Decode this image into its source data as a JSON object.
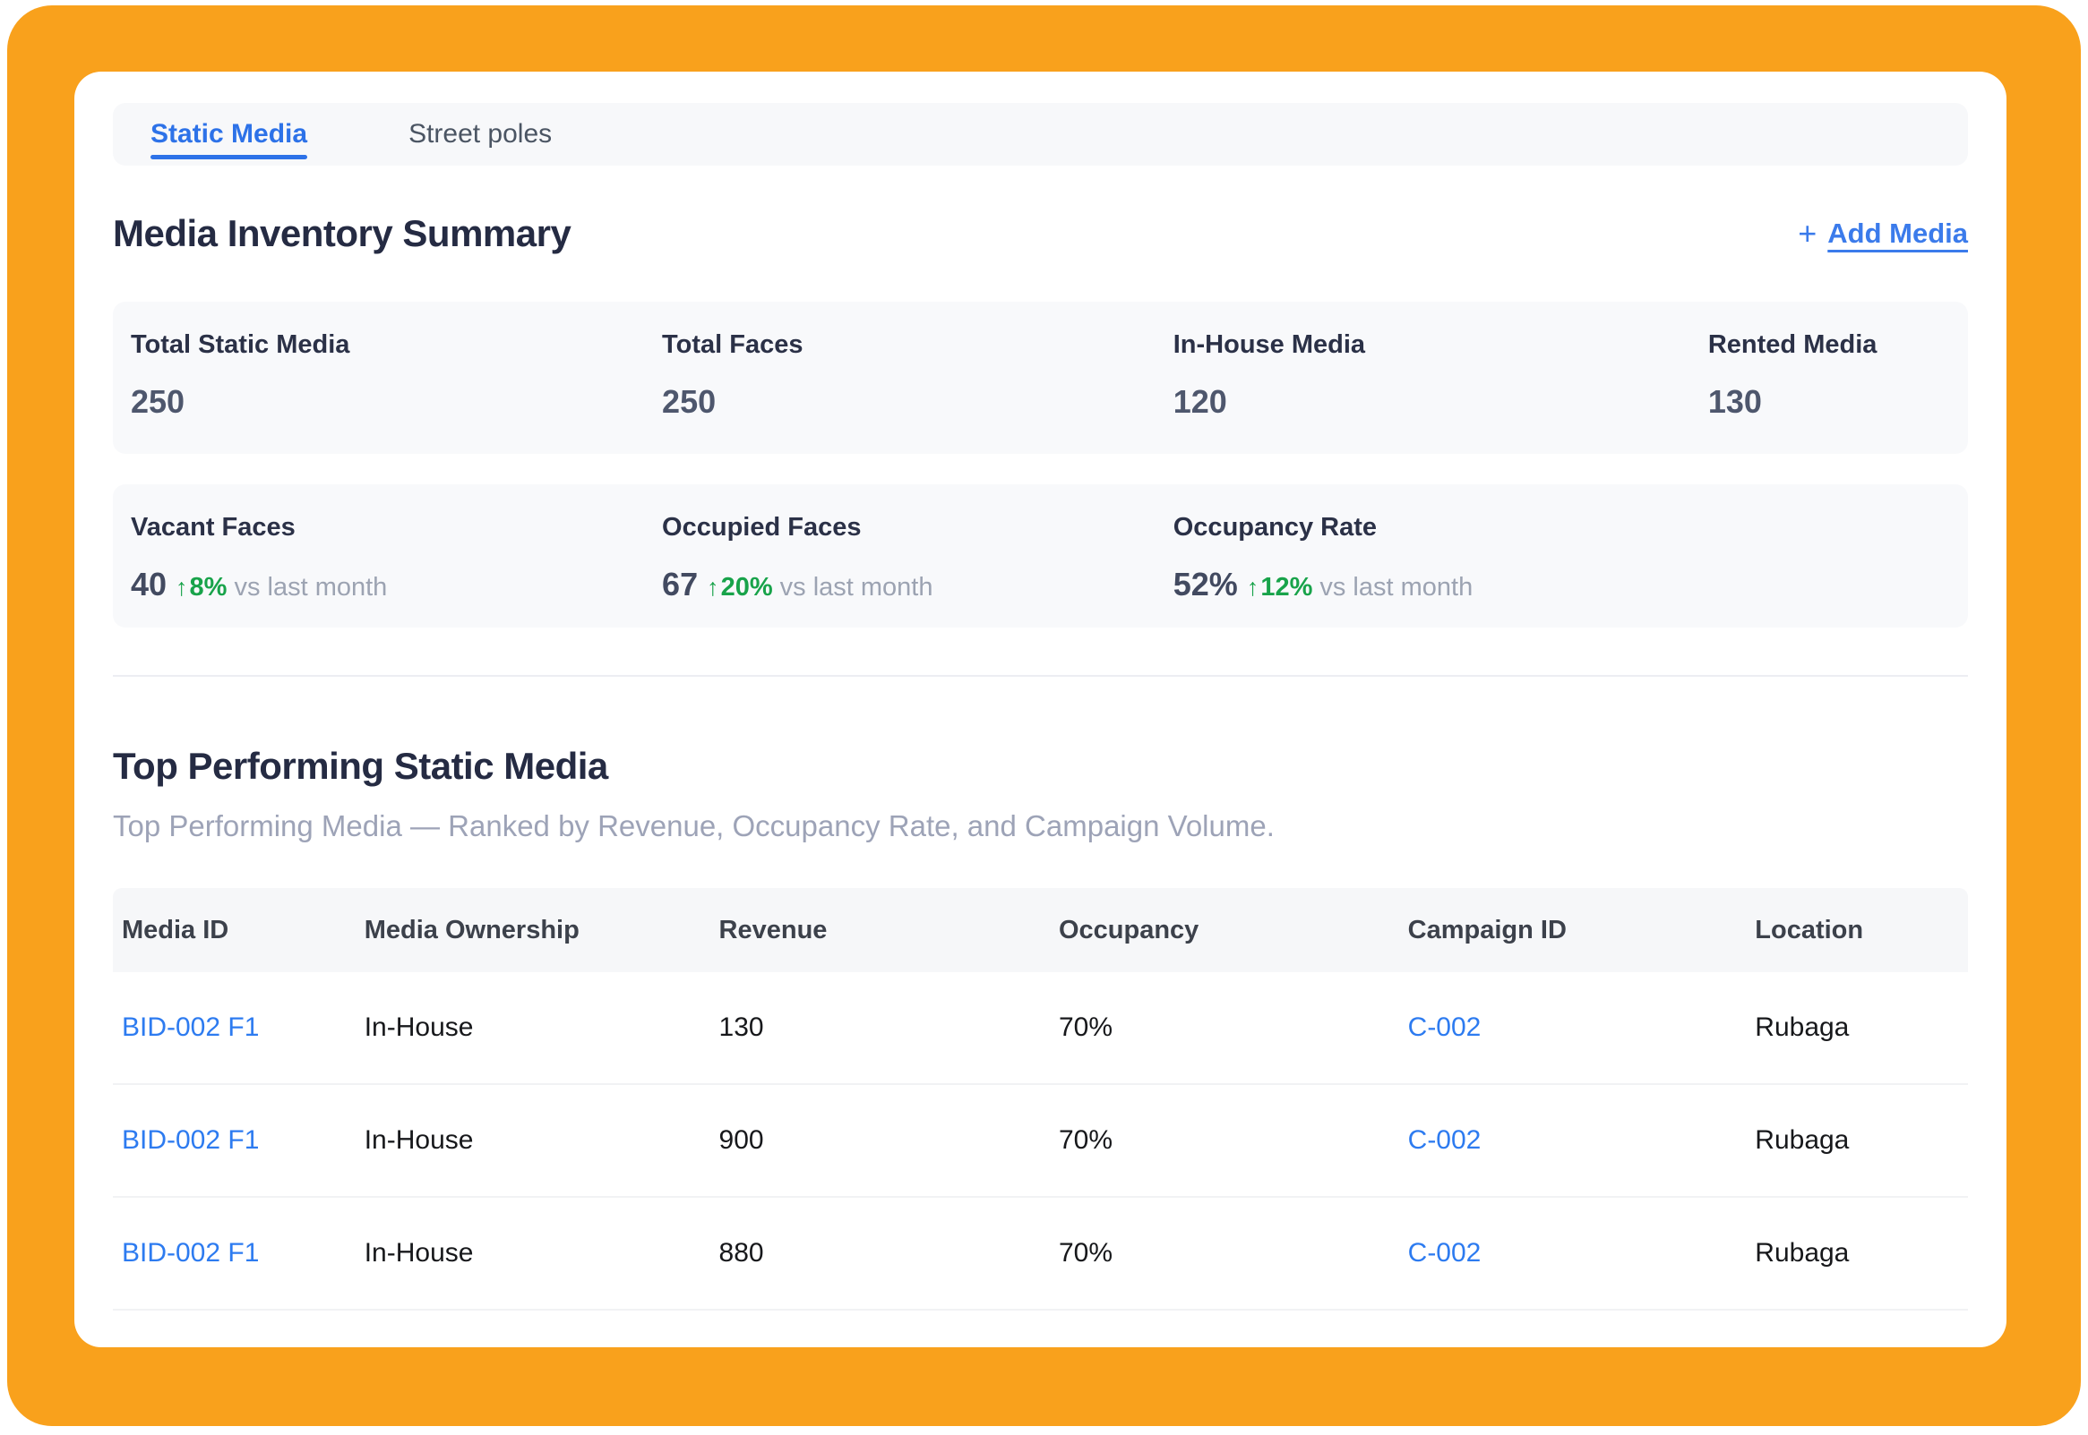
{
  "tabs": {
    "static_media": "Static Media",
    "street_poles": "Street poles"
  },
  "inventory": {
    "title": "Media Inventory Summary",
    "add_media": {
      "plus": "+",
      "label": "Add Media"
    },
    "row1": [
      {
        "label": "Total Static Media",
        "value": "250"
      },
      {
        "label": "Total Faces",
        "value": "250"
      },
      {
        "label": "In-House Media",
        "value": "120"
      },
      {
        "label": "Rented Media",
        "value": "130"
      }
    ],
    "row2": [
      {
        "label": "Vacant Faces",
        "value": "40",
        "arrow": "↑",
        "delta": "8%",
        "note": "vs last month"
      },
      {
        "label": "Occupied Faces",
        "value": "67",
        "arrow": "↑",
        "delta": "20%",
        "note": "vs last month"
      },
      {
        "label": "Occupancy Rate",
        "value": "52%",
        "arrow": "↑",
        "delta": "12%",
        "note": "vs last month"
      }
    ]
  },
  "top_performing": {
    "title": "Top Performing Static Media",
    "subtitle": "Top Performing Media — Ranked by Revenue, Occupancy Rate, and Campaign Volume.",
    "table": {
      "columns": [
        "Media ID",
        "Media Ownership",
        "Revenue",
        "Occupancy",
        "Campaign ID",
        "Location"
      ],
      "rows": [
        {
          "media_id": "BID-002 F1",
          "ownership": "In-House",
          "revenue": "130",
          "occupancy": "70%",
          "campaign_id": "C-002",
          "location": "Rubaga"
        },
        {
          "media_id": "BID-002 F1",
          "ownership": "In-House",
          "revenue": "900",
          "occupancy": "70%",
          "campaign_id": "C-002",
          "location": "Rubaga"
        },
        {
          "media_id": "BID-002 F1",
          "ownership": "In-House",
          "revenue": "880",
          "occupancy": "70%",
          "campaign_id": "C-002",
          "location": "Rubaga"
        }
      ]
    }
  },
  "colors": {
    "accent_orange": "#F9A11C",
    "accent_blue": "#2D72E8",
    "link_blue": "#2D7BF0",
    "positive_green": "#18A34A"
  }
}
